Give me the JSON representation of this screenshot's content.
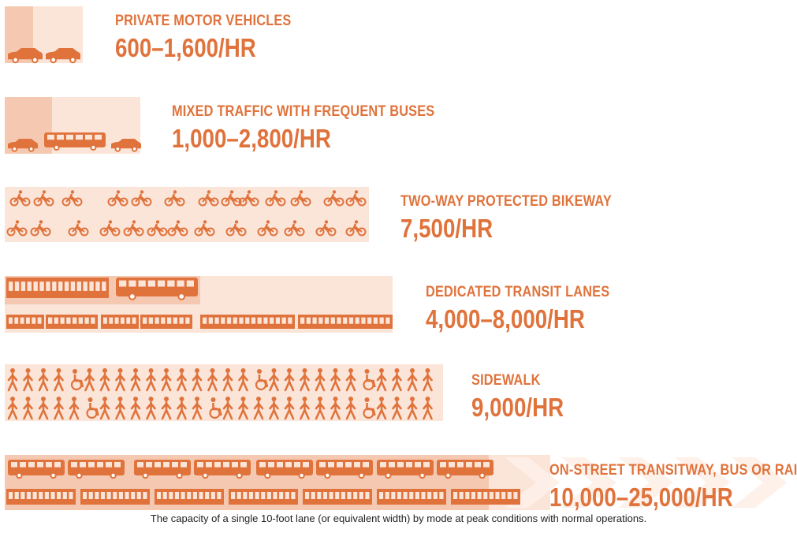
{
  "chart_data": {
    "type": "table",
    "colors": {
      "accent": "#e0733c",
      "lane_light": "#fbe5d9",
      "lane_dark": "#f5c9b1"
    },
    "rows": [
      {
        "mode": "PRIVATE MOTOR VEHICLES",
        "capacity": "600–1,600/HR",
        "min_per_hr": 600,
        "max_per_hr": 1600,
        "icon": "car-icon"
      },
      {
        "mode": "MIXED TRAFFIC WITH FREQUENT BUSES",
        "capacity": "1,000–2,800/HR",
        "min_per_hr": 1000,
        "max_per_hr": 2800,
        "icon": "bus-icon"
      },
      {
        "mode": "TWO-WAY PROTECTED BIKEWAY",
        "capacity": "7,500/HR",
        "min_per_hr": 7500,
        "max_per_hr": 7500,
        "icon": "bicycle-icon"
      },
      {
        "mode": "DEDICATED TRANSIT LANES",
        "capacity": "4,000–8,000/HR",
        "min_per_hr": 4000,
        "max_per_hr": 8000,
        "icon": "tram-icon"
      },
      {
        "mode": "SIDEWALK",
        "capacity": "9,000/HR",
        "min_per_hr": 9000,
        "max_per_hr": 9000,
        "icon": "pedestrian-icon"
      },
      {
        "mode": "ON-STREET TRANSITWAY, BUS OR RAIL",
        "capacity": "10,000–25,000/HR",
        "min_per_hr": 10000,
        "max_per_hr": 25000,
        "icon": "train-icon"
      }
    ]
  },
  "caption": "The capacity of a single 10-foot lane (or equivalent width) by mode at peak conditions with normal operations."
}
